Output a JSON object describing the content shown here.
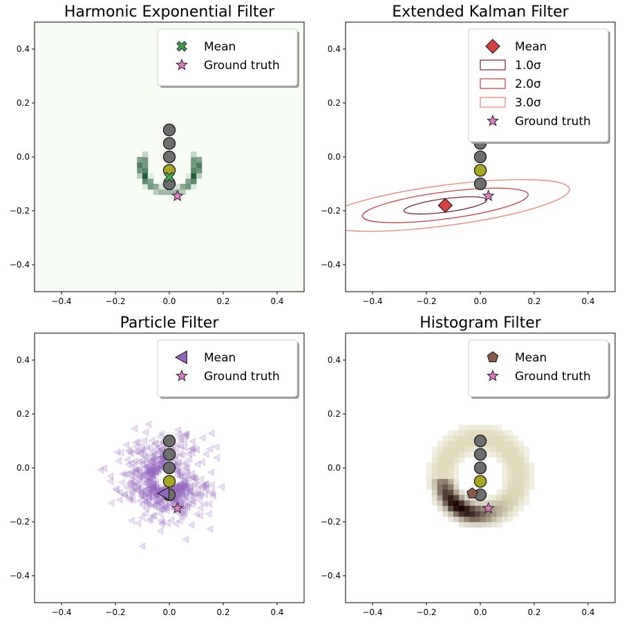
{
  "chart_data": [
    {
      "type": "heatmap",
      "title": "Harmonic Exponential Filter",
      "xlim": [
        -0.5,
        0.5
      ],
      "ylim": [
        -0.5,
        0.5
      ],
      "xticks": [
        "−0.4",
        "−0.2",
        "0.0",
        "0.2",
        "0.4"
      ],
      "yticks": [
        "−0.4",
        "−0.2",
        "0.0",
        "0.2",
        "0.4"
      ],
      "grid": false,
      "legend_placement": "top-right",
      "colormap": [
        "#f7fcf5",
        "#00441b"
      ],
      "legend": [
        {
          "label": "Mean",
          "marker": "x-marker",
          "color": "#3fa34d"
        },
        {
          "label": "Ground truth",
          "marker": "star",
          "color": "#e07cc4"
        }
      ],
      "landmarks": [
        [
          0,
          0.1
        ],
        [
          0,
          0.05
        ],
        [
          0,
          0
        ],
        [
          0,
          -0.05
        ],
        [
          0,
          -0.1
        ]
      ],
      "landmark_highlight_index": 3,
      "mean": [
        0,
        -0.075
      ],
      "ground_truth": [
        0.03,
        -0.145
      ],
      "density_blobs": [
        {
          "x": -0.1,
          "y": -0.05,
          "w": 1.0
        },
        {
          "x": 0.1,
          "y": -0.05,
          "w": 1.0
        },
        {
          "x": -0.09,
          "y": -0.09,
          "w": 0.7
        },
        {
          "x": 0.09,
          "y": -0.09,
          "w": 0.7
        },
        {
          "x": -0.06,
          "y": -0.11,
          "w": 0.5
        },
        {
          "x": 0.06,
          "y": -0.11,
          "w": 0.5
        },
        {
          "x": -0.03,
          "y": -0.12,
          "w": 0.4
        },
        {
          "x": 0.03,
          "y": -0.12,
          "w": 0.4
        },
        {
          "x": 0.0,
          "y": -0.09,
          "w": 0.6
        },
        {
          "x": -0.1,
          "y": -0.02,
          "w": 0.4
        },
        {
          "x": 0.1,
          "y": -0.02,
          "w": 0.4
        }
      ]
    },
    {
      "type": "scatter",
      "title": "Extended Kalman Filter",
      "xlim": [
        -0.5,
        0.5
      ],
      "ylim": [
        -0.5,
        0.5
      ],
      "xticks": [
        "−0.4",
        "−0.2",
        "0.0",
        "0.2",
        "0.4"
      ],
      "yticks": [
        "−0.4",
        "−0.2",
        "0.0",
        "0.2",
        "0.4"
      ],
      "grid": false,
      "legend_placement": "top-right",
      "legend": [
        {
          "label": "Mean",
          "marker": "diamond",
          "color": "#d94040"
        },
        {
          "label": "1.0σ",
          "marker": "ellipse-patch",
          "color": "#7a1f2e"
        },
        {
          "label": "2.0σ",
          "marker": "ellipse-patch",
          "color": "#cc3a3a"
        },
        {
          "label": "3.0σ",
          "marker": "ellipse-patch",
          "color": "#f08070"
        },
        {
          "label": "Ground truth",
          "marker": "star",
          "color": "#e07cc4"
        }
      ],
      "landmarks": [
        [
          0,
          0.1
        ],
        [
          0,
          0.05
        ],
        [
          0,
          0
        ],
        [
          0,
          -0.05
        ],
        [
          0,
          -0.1
        ]
      ],
      "landmark_highlight_index": 3,
      "mean": [
        -0.13,
        -0.18
      ],
      "ground_truth": [
        0.03,
        -0.145
      ],
      "ellipses": [
        {
          "sigma": 1.0,
          "rx": 0.155,
          "ry": 0.025,
          "angle_deg": 7.5,
          "color": "#7a1f2e"
        },
        {
          "sigma": 2.0,
          "rx": 0.31,
          "ry": 0.05,
          "angle_deg": 7.5,
          "color": "#cc3a3a"
        },
        {
          "sigma": 3.0,
          "rx": 0.465,
          "ry": 0.075,
          "angle_deg": 7.5,
          "color": "#f08070"
        }
      ]
    },
    {
      "type": "scatter",
      "title": "Particle Filter",
      "xlim": [
        -0.5,
        0.5
      ],
      "ylim": [
        -0.5,
        0.5
      ],
      "xticks": [
        "−0.4",
        "−0.2",
        "0.0",
        "0.2",
        "0.4"
      ],
      "yticks": [
        "−0.4",
        "−0.2",
        "0.0",
        "0.2",
        "0.4"
      ],
      "grid": false,
      "legend_placement": "top-right",
      "particle_color": "#9467bd",
      "particle_center": [
        -0.01,
        -0.04
      ],
      "particle_spread": [
        0.1,
        0.09
      ],
      "particle_count": 700,
      "legend": [
        {
          "label": "Mean",
          "marker": "triangle-left",
          "color": "#9467bd"
        },
        {
          "label": "Ground truth",
          "marker": "star",
          "color": "#e07cc4"
        }
      ],
      "landmarks": [
        [
          0,
          0.1
        ],
        [
          0,
          0.05
        ],
        [
          0,
          0
        ],
        [
          0,
          -0.05
        ],
        [
          0,
          -0.1
        ]
      ],
      "landmark_highlight_index": 3,
      "mean": [
        -0.02,
        -0.095
      ],
      "ground_truth": [
        0.03,
        -0.15
      ]
    },
    {
      "type": "heatmap",
      "title": "Histogram Filter",
      "xlim": [
        -0.5,
        0.5
      ],
      "ylim": [
        -0.5,
        0.5
      ],
      "xticks": [
        "−0.4",
        "−0.2",
        "0.0",
        "0.2",
        "0.4"
      ],
      "yticks": [
        "−0.4",
        "−0.2",
        "0.0",
        "0.2",
        "0.4"
      ],
      "grid": false,
      "legend_placement": "top-right",
      "colormap": [
        "#f2efcf",
        "#1a0000"
      ],
      "ring_center": [
        0,
        -0.03
      ],
      "ring_radius": 0.14,
      "legend": [
        {
          "label": "Mean",
          "marker": "pentagon",
          "color": "#8c5a4a"
        },
        {
          "label": "Ground truth",
          "marker": "star",
          "color": "#e07cc4"
        }
      ],
      "landmarks": [
        [
          0,
          0.1
        ],
        [
          0,
          0.05
        ],
        [
          0,
          0
        ],
        [
          0,
          -0.05
        ],
        [
          0,
          -0.1
        ]
      ],
      "landmark_highlight_index": 3,
      "mean": [
        -0.03,
        -0.095
      ],
      "ground_truth": [
        0.03,
        -0.15
      ]
    }
  ]
}
